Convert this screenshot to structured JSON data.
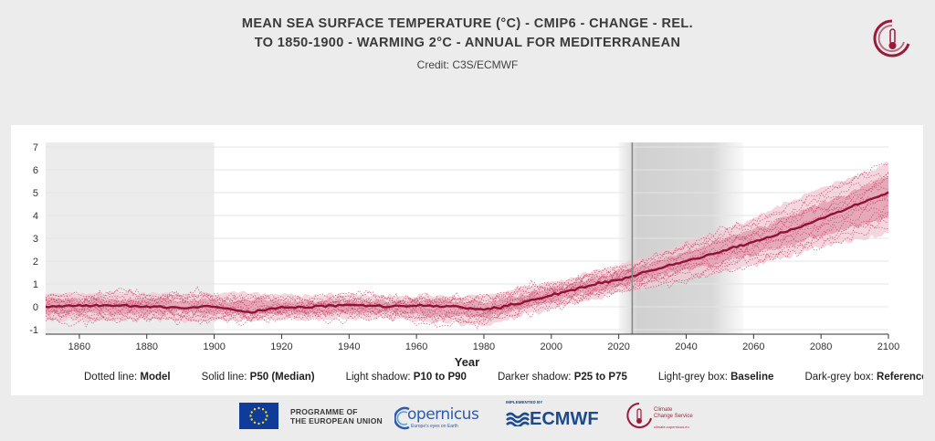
{
  "title_line1": "MEAN SEA SURFACE TEMPERATURE (°C) - CMIP6 - CHANGE - REL.",
  "title_line2": "TO 1850-1900 - WARMING 2°C - ANNUAL FOR MEDITERRANEAN",
  "credit": "Credit: C3S/ECMWF",
  "colors": {
    "accent": "#9b1a3c",
    "median": "#8e1335",
    "model": "#c8405f",
    "baseline_box": "#ececec",
    "shadow_light": "#f0c8d3",
    "shadow_dark": "#e19aae"
  },
  "legend": [
    {
      "prefix": "Dotted line: ",
      "value": "Model"
    },
    {
      "prefix": "Solid line: ",
      "value": "P50 (Median)"
    },
    {
      "prefix": "Light shadow: ",
      "value": "P10 to P90"
    },
    {
      "prefix": "Darker shadow: ",
      "value": "P25 to P75"
    },
    {
      "prefix": "Light-grey box: ",
      "value": "Baseline"
    },
    {
      "prefix": "Dark-grey box: ",
      "value": "Reference"
    }
  ],
  "footer": {
    "eu_line1": "PROGRAMME OF",
    "eu_line2": "THE EUROPEAN UNION",
    "copernicus": "opernicus",
    "copernicus_sub": "Europe's eyes on Earth",
    "ecmwf_implemented": "IMPLEMENTED BY",
    "ecmwf": "ECMWF",
    "c3s_line1": "Climate",
    "c3s_line2": "Change Service",
    "c3s_sub": "climate.copernicus.eu"
  },
  "chart_data": {
    "type": "line",
    "title": "MEAN SEA SURFACE TEMPERATURE (°C) - CMIP6 - CHANGE - REL. TO 1850-1900 - WARMING 2°C - ANNUAL FOR MEDITERRANEAN",
    "xlabel": "Year",
    "ylabel": "",
    "xlim": [
      1850,
      2100
    ],
    "ylim": [
      -1.2,
      7.2
    ],
    "xticks": [
      1860,
      1880,
      1900,
      1920,
      1940,
      1960,
      1980,
      2000,
      2020,
      2040,
      2060,
      2080,
      2100
    ],
    "yticks": [
      -1,
      0,
      1,
      2,
      3,
      4,
      5,
      6,
      7
    ],
    "baseline_period": [
      1850,
      1900
    ],
    "reference_period": [
      2020,
      2057
    ],
    "reference_year": 2024,
    "median": {
      "name": "P50 (Median)",
      "x": [
        1850,
        1860,
        1870,
        1880,
        1890,
        1900,
        1910,
        1920,
        1930,
        1940,
        1950,
        1960,
        1970,
        1980,
        1990,
        2000,
        2010,
        2020,
        2030,
        2040,
        2050,
        2060,
        2070,
        2080,
        2090,
        2100
      ],
      "y": [
        0.0,
        0.05,
        0.05,
        0.0,
        -0.05,
        0.0,
        -0.25,
        -0.05,
        0.0,
        0.1,
        0.0,
        0.05,
        0.0,
        -0.15,
        0.15,
        0.5,
        0.9,
        1.2,
        1.6,
        2.0,
        2.4,
        2.85,
        3.3,
        3.85,
        4.45,
        5.0
      ]
    },
    "p10_p90": {
      "x": [
        1850,
        1900,
        1950,
        1980,
        2000,
        2020,
        2040,
        2060,
        2080,
        2100
      ],
      "low": [
        -0.6,
        -0.6,
        -0.5,
        -0.8,
        -0.1,
        0.6,
        1.2,
        1.8,
        2.6,
        3.2
      ],
      "high": [
        0.6,
        0.6,
        0.5,
        0.5,
        1.1,
        1.8,
        2.8,
        3.9,
        5.2,
        6.3
      ]
    },
    "p25_p75": {
      "x": [
        1850,
        1900,
        1950,
        1980,
        2000,
        2020,
        2040,
        2060,
        2080,
        2100
      ],
      "low": [
        -0.3,
        -0.3,
        -0.25,
        -0.5,
        0.2,
        0.9,
        1.6,
        2.3,
        3.1,
        3.9
      ],
      "high": [
        0.3,
        0.3,
        0.25,
        0.2,
        0.8,
        1.5,
        2.4,
        3.4,
        4.5,
        5.7
      ]
    },
    "model_count": 14
  }
}
